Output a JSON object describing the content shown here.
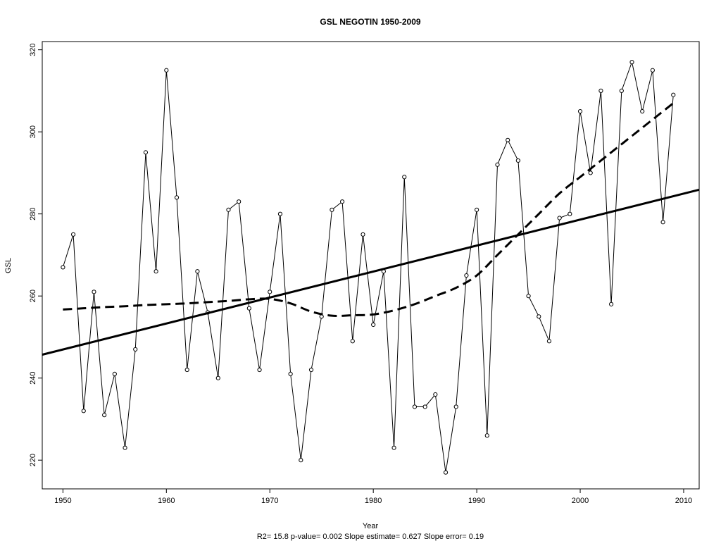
{
  "chart_data": {
    "type": "line",
    "title": "GSL   NEGOTIN 1950-2009",
    "xlabel": "Year",
    "ylabel": "GSL",
    "subtitle": "R2= 15.8  p-value= 0.002  Slope estimate= 0.627  Slope error= 0.19",
    "xlim": [
      1948,
      2011.5
    ],
    "ylim": [
      213,
      322
    ],
    "x_ticks": [
      1950,
      1960,
      1970,
      1980,
      1990,
      2000,
      2010
    ],
    "y_ticks": [
      220,
      240,
      260,
      280,
      300,
      320
    ],
    "grid": false,
    "series": [
      {
        "style": "line-with-points",
        "x": [
          1950,
          1951,
          1952,
          1953,
          1954,
          1955,
          1956,
          1957,
          1958,
          1959,
          1960,
          1961,
          1962,
          1963,
          1964,
          1965,
          1966,
          1967,
          1968,
          1969,
          1970,
          1971,
          1972,
          1973,
          1974,
          1975,
          1976,
          1977,
          1978,
          1979,
          1980,
          1981,
          1982,
          1983,
          1984,
          1985,
          1986,
          1987,
          1988,
          1989,
          1990,
          1991,
          1992,
          1993,
          1994,
          1995,
          1996,
          1997,
          1998,
          1999,
          2000,
          2001,
          2002,
          2003,
          2004,
          2005,
          2006,
          2007,
          2008,
          2009
        ],
        "values": [
          267,
          275,
          232,
          261,
          231,
          241,
          223,
          247,
          295,
          266,
          315,
          284,
          242,
          266,
          256,
          240,
          281,
          283,
          257,
          242,
          261,
          280,
          241,
          220,
          242,
          255,
          281,
          283,
          249,
          275,
          253,
          266,
          223,
          289,
          233,
          233,
          236,
          217,
          233,
          265,
          281,
          226,
          292,
          298,
          293,
          260,
          255,
          249,
          279,
          280,
          305,
          290,
          310,
          258,
          310,
          317,
          305,
          315,
          278,
          309
        ]
      },
      {
        "style": "solid-thick",
        "kind": "linear-trend",
        "x": [
          1948,
          2011.5
        ],
        "values": [
          245.7,
          285.9
        ]
      },
      {
        "style": "dashed-thick",
        "kind": "smooth",
        "x": [
          1950,
          1952,
          1954,
          1956,
          1958,
          1960,
          1962,
          1964,
          1966,
          1968,
          1970,
          1972,
          1974,
          1976,
          1978,
          1980,
          1982,
          1984,
          1986,
          1988,
          1990,
          1992,
          1994,
          1996,
          1998,
          2000,
          2002,
          2004,
          2006,
          2008,
          2009
        ],
        "values": [
          256.7,
          257.0,
          257.3,
          257.5,
          257.8,
          258.0,
          258.2,
          258.5,
          258.8,
          259.2,
          259.3,
          258.2,
          256.2,
          255.2,
          255.3,
          255.5,
          256.5,
          258.0,
          260.0,
          262.0,
          265.0,
          270.0,
          275.0,
          280.0,
          285.0,
          289.0,
          293.0,
          297.0,
          301.0,
          305.0,
          307.0
        ]
      }
    ]
  }
}
